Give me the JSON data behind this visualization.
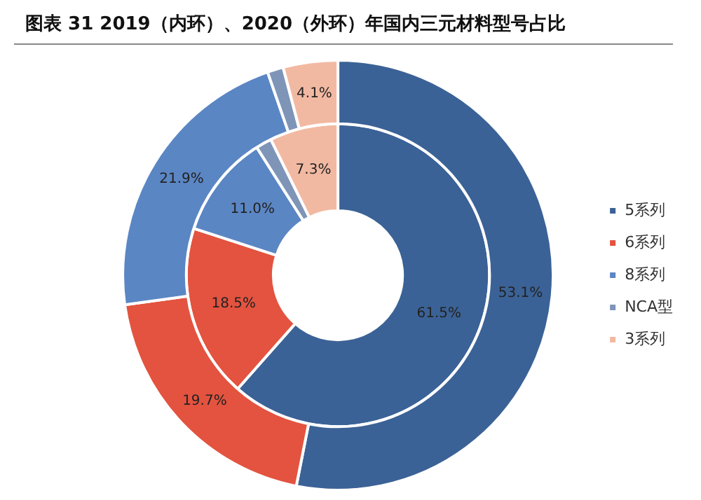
{
  "chart_data": {
    "type": "donut",
    "title": "图表 31 2019（内环）、2020（外环）年国内三元材料型号占比",
    "categories": [
      "5系列",
      "6系列",
      "8系列",
      "NCA型",
      "3系列"
    ],
    "series": [
      {
        "values": [
          53.1,
          19.7,
          21.9,
          1.2,
          4.1
        ],
        "value_labels": [
          "53.1%",
          "19.7%",
          "21.9%",
          null,
          "4.1%"
        ],
        "colors": [
          "#3b6296",
          "#e3533f",
          "#5b86c4",
          "#7f95b8",
          "#f2b9a2"
        ]
      },
      {
        "values": [
          61.5,
          18.5,
          11.0,
          1.7,
          7.3
        ],
        "value_labels": [
          "61.5%",
          "18.5%",
          "11.0%",
          null,
          "7.3%"
        ],
        "colors": [
          "#3b6296",
          "#e3533f",
          "#5b86c4",
          "#7f95b8",
          "#f2b9a2"
        ]
      }
    ],
    "legend": "right"
  }
}
